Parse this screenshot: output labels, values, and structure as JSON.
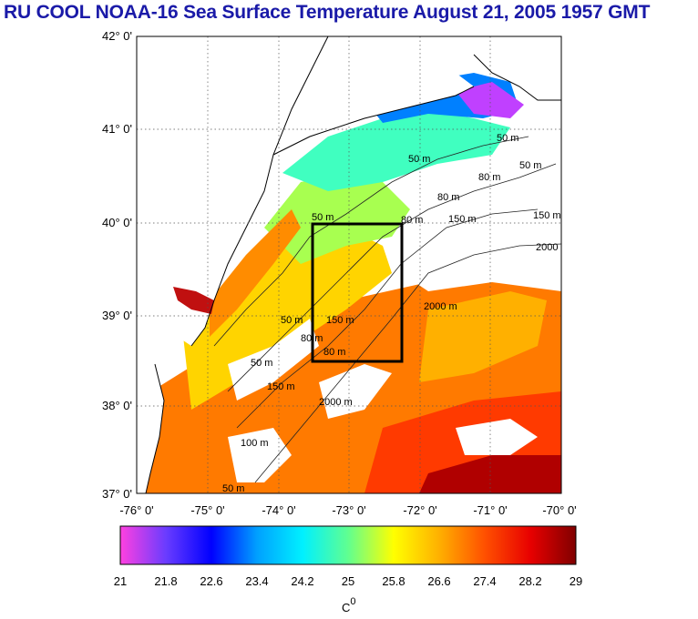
{
  "title": "RU COOL  NOAA-16 Sea Surface Temperature August 21, 2005 1957 GMT",
  "lat_labels": [
    "42° 0'",
    "41° 0'",
    "40° 0'",
    "39° 0'",
    "38° 0'",
    "37° 0'"
  ],
  "lon_labels": [
    "-76° 0'",
    "-75° 0'",
    "-74° 0'",
    "-73° 0'",
    "-72° 0'",
    "-71° 0'",
    "-70° 0'"
  ],
  "contour_labels": [
    "50 m",
    "50 m",
    "50 m",
    "50 m",
    "50 m",
    "50 m",
    "50 m",
    "80 m",
    "80 m",
    "80 m",
    "80 m",
    "100 m",
    "80 m",
    "150 m",
    "150 m",
    "150 m",
    "150 m",
    "2000",
    "2000 m",
    "2000 m"
  ],
  "colorbar": {
    "ticks": [
      "21",
      "21.8",
      "22.6",
      "23.4",
      "24.2",
      "25",
      "25.8",
      "26.6",
      "27.4",
      "28.2",
      "29"
    ],
    "unit_label": "C",
    "unit_superscript": "0",
    "colors": [
      "#ff40e0",
      "#6a3cff",
      "#0000ff",
      "#00a0ff",
      "#00f0ff",
      "#60ff90",
      "#ffff00",
      "#ffb000",
      "#ff5000",
      "#e80000",
      "#800000"
    ]
  },
  "colors": {
    "land": "#ffffff",
    "no_data": "#ffffff",
    "box": "#000000",
    "title": "#1a1aa8"
  }
}
